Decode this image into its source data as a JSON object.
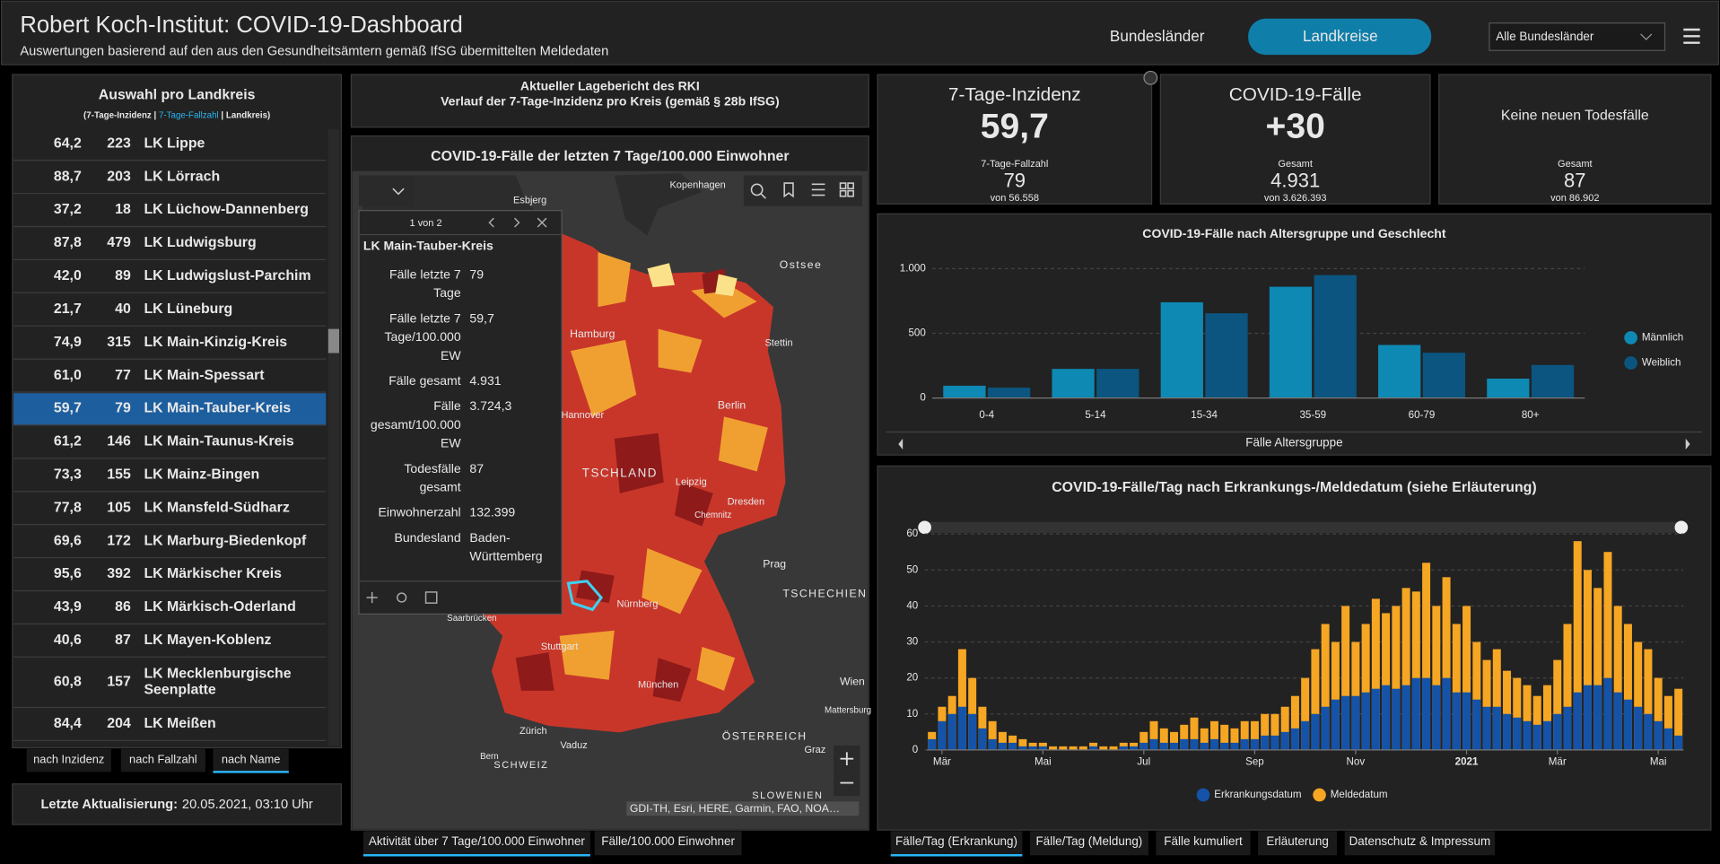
{
  "header": {
    "title": "Robert Koch-Institut: COVID-19-Dashboard",
    "subtitle": "Auswertungen basierend auf den aus den Gesundheitsämtern gemäß IfSG übermittelten Meldedaten",
    "nav": [
      "Bundesländer",
      "Landkreise"
    ],
    "dropdown": "Alle Bundesländer"
  },
  "district_list": {
    "title": "Auswahl pro Landkreis",
    "legend": [
      "(7-Tage-Inzidenz | ",
      "7-Tage-Fallzahl",
      " | Landkreis)"
    ],
    "rows": [
      {
        "incidence": "64,2",
        "cases": "223",
        "name": "LK Lippe"
      },
      {
        "incidence": "88,7",
        "cases": "203",
        "name": "LK Lörrach"
      },
      {
        "incidence": "37,2",
        "cases": "18",
        "name": "LK Lüchow-Dannenberg"
      },
      {
        "incidence": "87,8",
        "cases": "479",
        "name": "LK Ludwigsburg"
      },
      {
        "incidence": "42,0",
        "cases": "89",
        "name": "LK Ludwigslust-Parchim"
      },
      {
        "incidence": "21,7",
        "cases": "40",
        "name": "LK Lüneburg"
      },
      {
        "incidence": "74,9",
        "cases": "315",
        "name": "LK Main-Kinzig-Kreis"
      },
      {
        "incidence": "61,0",
        "cases": "77",
        "name": "LK Main-Spessart"
      },
      {
        "incidence": "59,7",
        "cases": "79",
        "name": "LK Main-Tauber-Kreis"
      },
      {
        "incidence": "61,2",
        "cases": "146",
        "name": "LK Main-Taunus-Kreis"
      },
      {
        "incidence": "73,3",
        "cases": "155",
        "name": "LK Mainz-Bingen"
      },
      {
        "incidence": "77,8",
        "cases": "105",
        "name": "LK Mansfeld-Südharz"
      },
      {
        "incidence": "69,6",
        "cases": "172",
        "name": "LK Marburg-Biedenkopf"
      },
      {
        "incidence": "95,6",
        "cases": "392",
        "name": "LK Märkischer Kreis"
      },
      {
        "incidence": "43,9",
        "cases": "86",
        "name": "LK Märkisch-Oderland"
      },
      {
        "incidence": "40,6",
        "cases": "87",
        "name": "LK Mayen-Koblenz"
      },
      {
        "incidence": "60,8",
        "cases": "157",
        "name": [
          "LK Mecklenburgische",
          "Seenplatte"
        ]
      },
      {
        "incidence": "84,4",
        "cases": "204",
        "name": "LK Meißen"
      }
    ],
    "selected": 8,
    "sort_buttons": [
      "nach Inzidenz",
      "nach Fallzahl",
      "nach Name"
    ],
    "active_sort": 2,
    "last_update": {
      "label": "Letzte Aktualisierung:",
      "value": "20.05.2021, 03:10 Uhr"
    }
  },
  "report": {
    "lines": [
      "Aktueller Lagebericht des RKI",
      "Verlauf der 7-Tage-Inzidenz pro Kreis (gemäß § 28b IfSG)"
    ]
  },
  "map": {
    "title": "COVID-19-Fälle der letzten 7 Tage/100.000 Einwohner",
    "popup": {
      "pager": "1 von 2",
      "name": "LK Main-Tauber-Kreis",
      "fields": [
        {
          "label": [
            "Fälle letzte 7",
            "Tage"
          ],
          "value": [
            "79"
          ]
        },
        {
          "label": [
            "Fälle letzte 7",
            "Tage/100.000",
            "EW"
          ],
          "value": [
            "59,7"
          ]
        },
        {
          "label": [
            "Fälle gesamt"
          ],
          "value": [
            "4.931"
          ]
        },
        {
          "label": [
            "Fälle",
            "gesamt/100.000",
            "EW"
          ],
          "value": [
            "3.724,3"
          ]
        },
        {
          "label": [
            "Todesfälle",
            "gesamt"
          ],
          "value": [
            "87"
          ]
        },
        {
          "label": [
            "Einwohnerzahl"
          ],
          "value": [
            "132.399"
          ]
        },
        {
          "label": [
            "Bundesland"
          ],
          "value": [
            "Baden-",
            "Württemberg"
          ]
        }
      ]
    },
    "places": [
      "Esbjerg",
      "Kopenhagen",
      "Ostsee",
      "Hamburg",
      "Stettin",
      "Hannover",
      "Berlin",
      "TSCHLAND",
      "Leipzig",
      "Dresden",
      "Chemnitz",
      "Prag",
      "TSCHECHIEN",
      "Saarbrücken",
      "Nürnberg",
      "Stuttgart",
      "München",
      "Wien",
      "Mattersburg",
      "Zürich",
      "Vaduz",
      "Bern",
      "SCHWEIZ",
      "ÖSTERREICH",
      "Graz",
      "SLOWENIEN"
    ],
    "attribution": "GDI-TH, Esri, HERE, Garmin, FAO, NOA…",
    "tabs": [
      "Aktivität über 7 Tage/100.000 Einwohner",
      "Fälle/100.000 Einwohner"
    ],
    "active_tab": 0
  },
  "kpis": [
    {
      "label": "7-Tage-Inzidenz",
      "value": "59,7",
      "sub_label": "7-Tage-Fallzahl",
      "sub_value": "79",
      "sub_total": "von 56.558"
    },
    {
      "label": "COVID-19-Fälle",
      "value": "+30",
      "sub_label": "Gesamt",
      "sub_value": "4.931",
      "sub_total": "von 3.626.393"
    },
    {
      "label": "Keine neuen Todesfälle",
      "sub_label": "Gesamt",
      "sub_value": "87",
      "sub_total": "von 86.902"
    }
  ],
  "chart_data": [
    {
      "type": "bar",
      "title": "COVID-19-Fälle nach Altersgruppe und Geschlecht",
      "x_label": "Fälle Altersgruppe",
      "categories": [
        "0-4",
        "5-14",
        "15-34",
        "35-59",
        "60-79",
        "80+"
      ],
      "series": [
        {
          "name": "Männlich",
          "color": "#0e89b3",
          "values": [
            95,
            225,
            740,
            860,
            410,
            150
          ]
        },
        {
          "name": "Weiblich",
          "color": "#0b5580",
          "values": [
            80,
            225,
            655,
            950,
            350,
            255
          ]
        }
      ],
      "ylim": [
        0,
        1000
      ],
      "yticks": [
        0,
        500,
        {
          "value": 1000,
          "label": "1.000"
        }
      ],
      "grid": true,
      "legend": "right"
    },
    {
      "type": "overlap-bar",
      "title": "COVID-19-Fälle/Tag nach Erkrankungs-/Meldedatum (siehe Erläuterung)",
      "categories": [
        null,
        "Mär",
        null,
        null,
        null,
        null,
        null,
        null,
        null,
        null,
        null,
        "Mai",
        null,
        null,
        null,
        null,
        null,
        null,
        null,
        null,
        null,
        "Jul",
        null,
        null,
        null,
        null,
        null,
        null,
        null,
        null,
        null,
        null,
        "Sep",
        null,
        null,
        null,
        null,
        null,
        null,
        null,
        null,
        null,
        "Nov",
        null,
        null,
        null,
        null,
        null,
        null,
        null,
        null,
        null,
        null,
        "2021",
        null,
        null,
        null,
        null,
        null,
        null,
        null,
        null,
        "Mär",
        null,
        null,
        null,
        null,
        null,
        null,
        null,
        null,
        null,
        "Mai",
        null,
        null
      ],
      "series": [
        {
          "name": "Meldedatum",
          "color": "#f5a623",
          "values": [
            5,
            12,
            15,
            28,
            20,
            12,
            8,
            5,
            4,
            3,
            2,
            2,
            1,
            1,
            1,
            1,
            2,
            1,
            1,
            2,
            2,
            5,
            8,
            6,
            5,
            7,
            9,
            6,
            8,
            7,
            6,
            8,
            8,
            10,
            10,
            12,
            15,
            20,
            28,
            35,
            30,
            40,
            30,
            35,
            42,
            38,
            40,
            45,
            44,
            52,
            40,
            48,
            35,
            40,
            30,
            25,
            28,
            22,
            20,
            18,
            15,
            18,
            25,
            35,
            58,
            50,
            45,
            55,
            40,
            35,
            30,
            28,
            20,
            15,
            17
          ]
        },
        {
          "name": "Erkrankungsdatum",
          "color": "#1453a8",
          "values": [
            3,
            8,
            10,
            12,
            10,
            6,
            3,
            2,
            2,
            1,
            1,
            1,
            0,
            0,
            0,
            0,
            1,
            0,
            0,
            1,
            1,
            2,
            3,
            2,
            2,
            3,
            3,
            2,
            3,
            2,
            2,
            3,
            3,
            4,
            4,
            5,
            6,
            8,
            10,
            12,
            14,
            15,
            15,
            16,
            17,
            18,
            17,
            18,
            20,
            20,
            18,
            20,
            16,
            16,
            14,
            12,
            12,
            10,
            9,
            8,
            7,
            8,
            10,
            12,
            16,
            18,
            18,
            20,
            16,
            14,
            12,
            10,
            8,
            6,
            4
          ]
        }
      ],
      "ylim": [
        0,
        60
      ],
      "yticks": [
        0,
        10,
        20,
        30,
        40,
        50,
        60
      ],
      "grid": true,
      "legend": "bottom"
    }
  ],
  "bottom_tabs": [
    "Fälle/Tag (Erkrankung)",
    "Fälle/Tag (Meldung)",
    "Fälle kumuliert",
    "Erläuterung",
    "Datenschutz & Impressum"
  ],
  "active_bottom_tab": 0
}
